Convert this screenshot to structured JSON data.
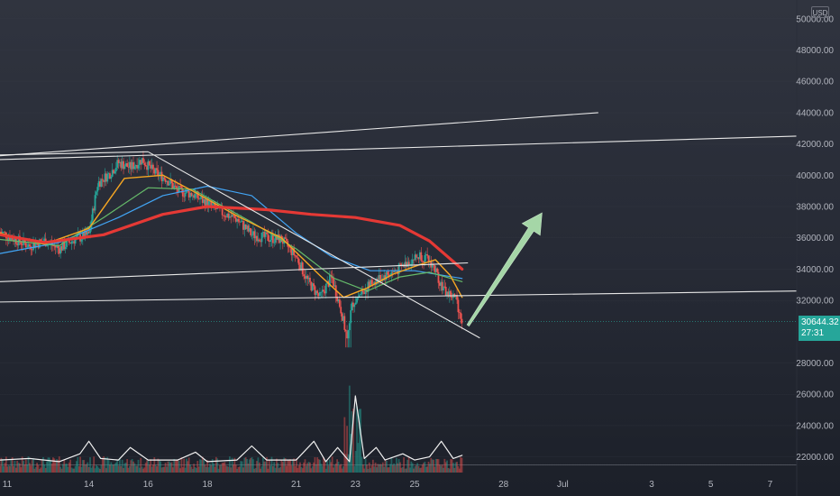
{
  "chart_data": {
    "type": "candlestick",
    "currency": "USD",
    "y_ticks": [
      "50000.00",
      "48000.00",
      "46000.00",
      "44000.00",
      "42000.00",
      "40000.00",
      "38000.00",
      "36000.00",
      "34000.00",
      "32000.00",
      "28000.00",
      "26000.00",
      "24000.00",
      "22000.00"
    ],
    "y_tick_values": [
      50000,
      48000,
      46000,
      44000,
      42000,
      40000,
      38000,
      36000,
      34000,
      32000,
      28000,
      26000,
      24000,
      22000
    ],
    "ylim": [
      21000,
      51200
    ],
    "x_ticks": [
      "11",
      "14",
      "16",
      "18",
      "21",
      "23",
      "25",
      "28",
      "Jul",
      "3",
      "5",
      "7"
    ],
    "x_tick_days": [
      11,
      14,
      16,
      18,
      21,
      23,
      25,
      28,
      30,
      33,
      35,
      37
    ],
    "xlim": [
      11.0,
      37.9
    ],
    "last_price": "30644.32",
    "countdown": "27:31",
    "colors": {
      "up": "#26a69a",
      "down": "#ef5350",
      "ma_red": "#e53935",
      "ma_orange": "#f5a623",
      "ma_green": "#66bb6a",
      "ma_blue": "#42a5f5",
      "arrow": "#a5d6a7"
    },
    "price_close": [
      [
        11.0,
        36400
      ],
      [
        11.5,
        35900
      ],
      [
        12.0,
        35500
      ],
      [
        12.5,
        35800
      ],
      [
        13.0,
        35300
      ],
      [
        13.5,
        35900
      ],
      [
        14.0,
        36200
      ],
      [
        14.3,
        39500
      ],
      [
        14.7,
        40100
      ],
      [
        15.0,
        40800
      ],
      [
        15.4,
        40500
      ],
      [
        15.8,
        41000
      ],
      [
        16.2,
        40200
      ],
      [
        16.6,
        39800
      ],
      [
        17.0,
        39000
      ],
      [
        17.5,
        38800
      ],
      [
        18.0,
        38200
      ],
      [
        18.5,
        37600
      ],
      [
        19.0,
        37200
      ],
      [
        19.5,
        36200
      ],
      [
        20.0,
        36000
      ],
      [
        20.5,
        35900
      ],
      [
        21.0,
        34800
      ],
      [
        21.4,
        33200
      ],
      [
        21.8,
        32200
      ],
      [
        22.2,
        33500
      ],
      [
        22.5,
        31500
      ],
      [
        22.7,
        29700
      ],
      [
        22.9,
        31800
      ],
      [
        23.2,
        32500
      ],
      [
        23.6,
        33200
      ],
      [
        24.0,
        33600
      ],
      [
        24.4,
        33900
      ],
      [
        24.8,
        34500
      ],
      [
        25.2,
        34900
      ],
      [
        25.6,
        34300
      ],
      [
        26.0,
        32600
      ],
      [
        26.4,
        32100
      ],
      [
        26.6,
        30644
      ]
    ],
    "ma_red": [
      [
        11.0,
        36200
      ],
      [
        12.5,
        35700
      ],
      [
        14.5,
        36200
      ],
      [
        16.5,
        37500
      ],
      [
        18.0,
        38000
      ],
      [
        20.0,
        37800
      ],
      [
        21.5,
        37500
      ],
      [
        23.0,
        37300
      ],
      [
        24.5,
        36800
      ],
      [
        25.5,
        35800
      ],
      [
        26.6,
        34000
      ]
    ],
    "ma_orange": [
      [
        11.0,
        36300
      ],
      [
        12.5,
        35600
      ],
      [
        14.0,
        36600
      ],
      [
        15.2,
        39800
      ],
      [
        16.5,
        40000
      ],
      [
        17.5,
        39000
      ],
      [
        19.0,
        37400
      ],
      [
        20.5,
        36000
      ],
      [
        21.8,
        33600
      ],
      [
        22.6,
        32200
      ],
      [
        23.4,
        32800
      ],
      [
        24.3,
        33700
      ],
      [
        25.2,
        34300
      ],
      [
        25.7,
        34600
      ],
      [
        26.2,
        33600
      ],
      [
        26.6,
        32200
      ]
    ],
    "ma_green": [
      [
        11.0,
        35900
      ],
      [
        13.0,
        35500
      ],
      [
        14.5,
        37300
      ],
      [
        16.0,
        39200
      ],
      [
        17.5,
        39100
      ],
      [
        19.5,
        37000
      ],
      [
        21.0,
        35300
      ],
      [
        22.3,
        33400
      ],
      [
        23.4,
        32600
      ],
      [
        24.5,
        33500
      ],
      [
        25.5,
        33800
      ],
      [
        26.6,
        33200
      ]
    ],
    "ma_blue": [
      [
        11.0,
        35000
      ],
      [
        13.0,
        35700
      ],
      [
        15.0,
        37300
      ],
      [
        16.5,
        38700
      ],
      [
        18.0,
        39300
      ],
      [
        19.5,
        38700
      ],
      [
        21.0,
        36300
      ],
      [
        22.2,
        34800
      ],
      [
        23.5,
        33900
      ],
      [
        25.0,
        33900
      ],
      [
        26.6,
        33400
      ]
    ],
    "volume_line": [
      [
        11,
        21800
      ],
      [
        12,
        21900
      ],
      [
        13,
        21700
      ],
      [
        13.7,
        22200
      ],
      [
        14.0,
        23000
      ],
      [
        14.4,
        21900
      ],
      [
        15.0,
        21800
      ],
      [
        15.4,
        22600
      ],
      [
        16,
        21800
      ],
      [
        17,
        21800
      ],
      [
        17.6,
        22300
      ],
      [
        18,
        21700
      ],
      [
        19,
        21800
      ],
      [
        19.5,
        22700
      ],
      [
        20,
        21800
      ],
      [
        21,
        21800
      ],
      [
        21.6,
        23000
      ],
      [
        22.0,
        21700
      ],
      [
        22.4,
        22600
      ],
      [
        22.8,
        21700
      ],
      [
        23.0,
        25900
      ],
      [
        23.3,
        21900
      ],
      [
        23.7,
        22600
      ],
      [
        24,
        21800
      ],
      [
        24.6,
        22200
      ],
      [
        25,
        21800
      ],
      [
        25.5,
        22000
      ],
      [
        25.9,
        23000
      ],
      [
        26.3,
        21900
      ],
      [
        26.6,
        22100
      ]
    ],
    "trendlines": [
      [
        [
          11.0,
          41250
        ],
        [
          31.2,
          44000
        ]
      ],
      [
        [
          11.0,
          41000
        ],
        [
          37.9,
          42500
        ]
      ],
      [
        [
          11.0,
          33200
        ],
        [
          26.8,
          34400
        ]
      ],
      [
        [
          11.0,
          31900
        ],
        [
          37.9,
          32600
        ]
      ],
      [
        [
          11.0,
          41300
        ],
        [
          16.0,
          41500
        ]
      ],
      [
        [
          16.0,
          41500
        ],
        [
          27.2,
          29600
        ]
      ]
    ],
    "arrow": [
      [
        26.8,
        30400
      ],
      [
        29.3,
        37600
      ]
    ]
  }
}
